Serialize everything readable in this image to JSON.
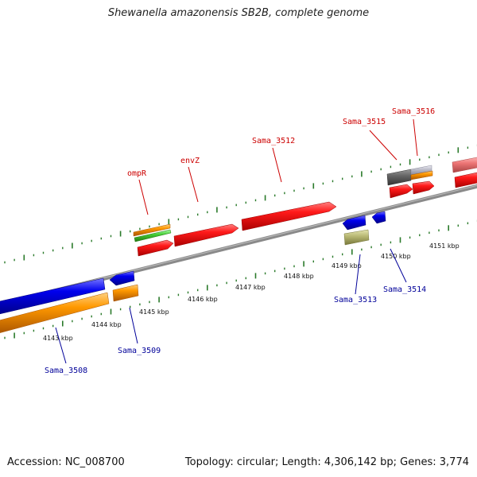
{
  "title": "Shewanella amazonensis SB2B, complete genome",
  "footer": {
    "accession": "Accession: NC_008700",
    "info": "Topology: circular; Length: 4,306,142 bp; Genes: 3,774"
  },
  "colors": {
    "forward_label": "#cc0000",
    "reverse_label": "#000099",
    "backbone": "#888888",
    "tick": "#2a7a2a",
    "red": "#ff0000",
    "blue": "#0000ee",
    "orange": "#ff9900",
    "green": "#44cc33",
    "gray": "#666666",
    "silver": "#c0c0cc",
    "pink": "#ee7777",
    "olive": "#bbbb77"
  },
  "kbp_labels": [
    "4143 kbp",
    "4144 kbp",
    "4145 kbp",
    "4146 kbp",
    "4147 kbp",
    "4148 kbp",
    "4149 kbp",
    "4150 kbp",
    "4151 kbp"
  ],
  "forward_labels": [
    "ompR",
    "envZ",
    "Sama_3512",
    "Sama_3515",
    "Sama_3516"
  ],
  "reverse_labels": [
    "Sama_3508",
    "Sama_3509",
    "Sama_3513",
    "Sama_3514"
  ]
}
